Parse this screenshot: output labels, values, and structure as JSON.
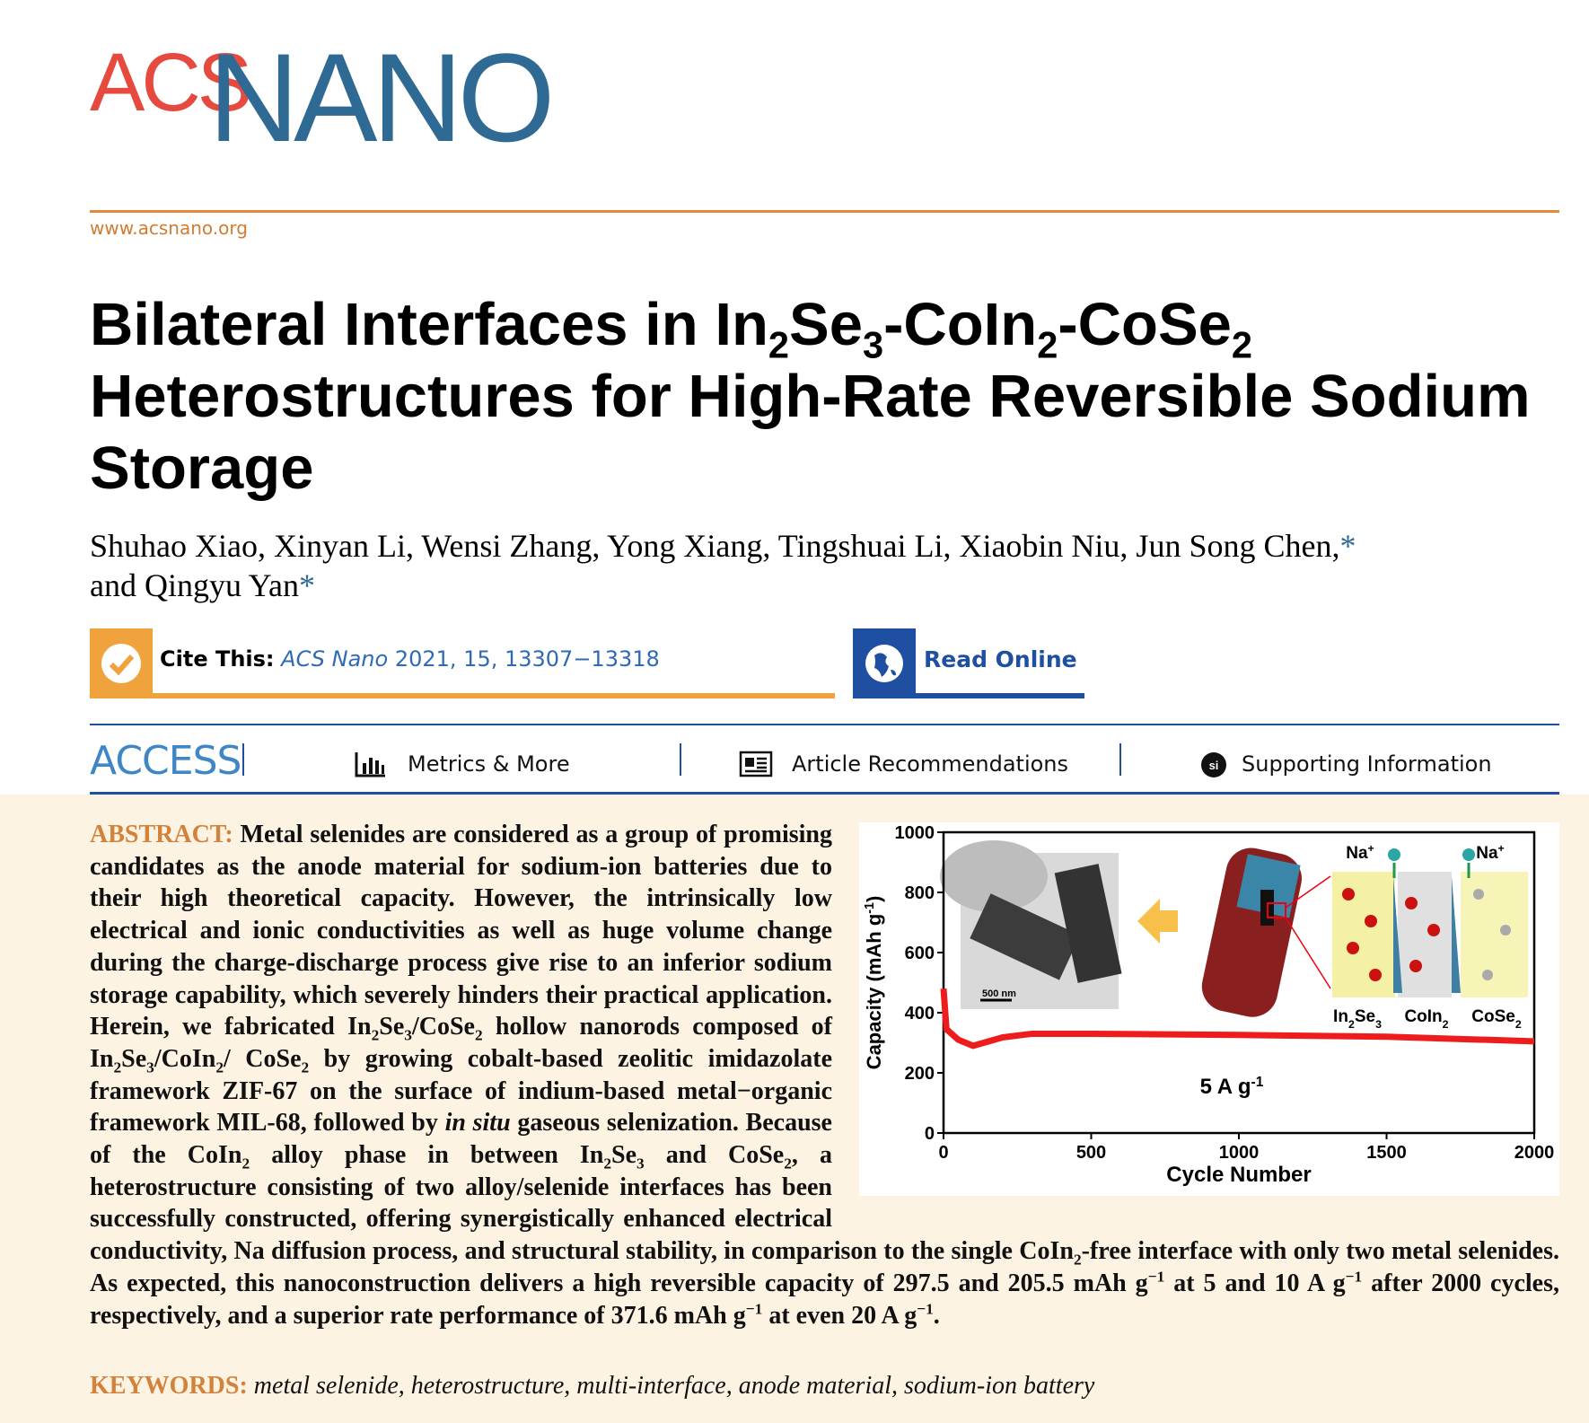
{
  "header": {
    "logo_acs": "ACS",
    "logo_nano": "NANO",
    "url": "www.acsnano.org"
  },
  "title": [
    {
      "t": "Bilateral Interfaces in In"
    },
    {
      "sub": "2"
    },
    {
      "t": "Se"
    },
    {
      "sub": "3"
    },
    {
      "t": "-CoIn"
    },
    {
      "sub": "2"
    },
    {
      "t": "-CoSe"
    },
    {
      "sub": "2"
    },
    {
      "t": " Heterostructures for High-Rate Reversible Sodium Storage"
    }
  ],
  "authors": [
    [
      {
        "t": "Shuhao Xiao, Xinyan Li, Wensi Zhang, Yong Xiang, Tingshuai Li, Xiaobin Niu, Jun Song Chen,"
      },
      {
        "star": "*"
      }
    ],
    [
      {
        "t": "and Qingyu Yan"
      },
      {
        "star": "*"
      }
    ]
  ],
  "cite": {
    "label": "Cite This:",
    "journal": "ACS Nano",
    "ref": "2021, 15, 13307−13318"
  },
  "read_online": "Read Online",
  "access": {
    "label": "ACCESS",
    "links": [
      "Metrics & More",
      "Article Recommendations",
      "Supporting Information"
    ]
  },
  "abstract": {
    "label": "ABSTRACT:",
    "parts": [
      {
        "t": " Metal selenides are considered as a group of promising candidates as the anode material for sodium-ion batteries due to their high theoretical capacity. However, the intrinsically low electrical and ionic conductivities as well as huge volume change during the charge-discharge process give rise to an inferior sodium storage capability, which severely hinders their practical application. Herein, we fabricated In"
      },
      {
        "sub": "2"
      },
      {
        "t": "Se"
      },
      {
        "sub": "3"
      },
      {
        "t": "/CoSe"
      },
      {
        "sub": "2"
      },
      {
        "t": " hollow nanorods composed of In"
      },
      {
        "sub": "2"
      },
      {
        "t": "Se"
      },
      {
        "sub": "3"
      },
      {
        "t": "/CoIn"
      },
      {
        "sub": "2"
      },
      {
        "t": "/ CoSe"
      },
      {
        "sub": "2"
      },
      {
        "t": " by growing cobalt-based zeolitic imidazolate framework ZIF-67 on the surface of indium-based metal−organic framework MIL-68, followed by "
      },
      {
        "i": "in situ"
      },
      {
        "t": " gaseous selenization. Because of the CoIn"
      },
      {
        "sub": "2"
      },
      {
        "t": " alloy phase in between In"
      },
      {
        "sub": "2"
      },
      {
        "t": "Se"
      },
      {
        "sub": "3"
      },
      {
        "t": " and CoSe"
      },
      {
        "sub": "2"
      },
      {
        "t": ", a heterostructure consisting of two alloy/selenide interfaces has been successfully constructed, offering synergistically enhanced electrical conductivity, Na diffusion process, and structural stability, in comparison to the single CoIn"
      },
      {
        "sub": "2"
      },
      {
        "t": "-free interface with only two metal selenides. As expected, this nanoconstruction delivers a high reversible capacity of 297.5 and 205.5 mAh g"
      },
      {
        "sup": "−1"
      },
      {
        "t": " at 5 and 10 A g"
      },
      {
        "sup": "−1"
      },
      {
        "t": " after 2000 cycles, respectively, and a superior rate performance of 371.6 mAh g"
      },
      {
        "sup": "−1"
      },
      {
        "t": " at even 20 A g"
      },
      {
        "sup": "−1"
      },
      {
        "t": "."
      }
    ]
  },
  "toc_figure": {
    "chart": {
      "type": "line",
      "color": "#ee1c1c",
      "xlim": [
        0,
        2000
      ],
      "ylim": [
        0,
        1000
      ],
      "xticks": [
        0,
        500,
        1000,
        1500,
        2000
      ],
      "yticks": [
        0,
        200,
        400,
        600,
        800,
        1000
      ],
      "x": [
        0,
        10,
        50,
        100,
        200,
        300,
        500,
        1000,
        1500,
        2000
      ],
      "values": [
        480,
        345,
        310,
        290,
        318,
        330,
        330,
        326,
        320,
        305
      ]
    },
    "y_label": [
      {
        "t": "Capacity (mAh g"
      },
      {
        "sup": "-1"
      },
      {
        "t": ")"
      }
    ],
    "x_label": [
      {
        "t": "Cycle Number"
      }
    ],
    "rate": [
      {
        "t": "5 A g"
      },
      {
        "sup": "-1"
      }
    ],
    "scale_bar": [
      {
        "t": "500 nm"
      }
    ],
    "ion_left": [
      {
        "t": "Na"
      },
      {
        "sup": "+"
      }
    ],
    "ion_right": [
      {
        "t": "Na"
      },
      {
        "sup": "+"
      }
    ],
    "phase_1": [
      {
        "t": "In"
      },
      {
        "sub": "2"
      },
      {
        "t": "Se"
      },
      {
        "sub": "3"
      }
    ],
    "phase_2": [
      {
        "t": "CoIn"
      },
      {
        "sub": "2"
      }
    ],
    "phase_3": [
      {
        "t": "CoSe"
      },
      {
        "sub": "2"
      }
    ]
  },
  "keywords": {
    "label": "KEYWORDS:",
    "text": "metal selenide, heterostructure, multi-interface, anode material, sodium-ion battery"
  }
}
